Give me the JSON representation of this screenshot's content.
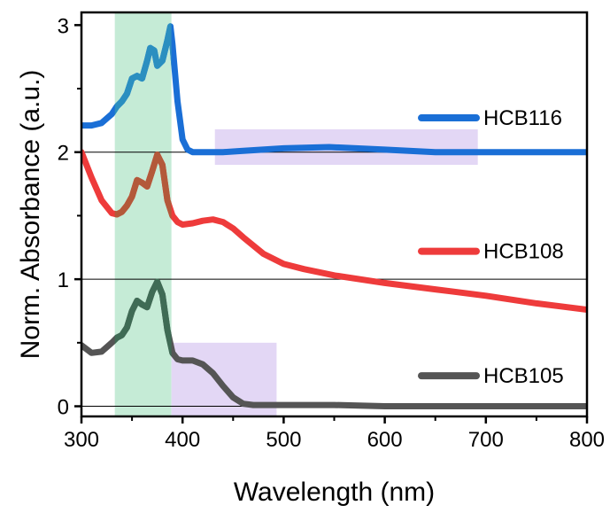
{
  "chart_data": {
    "type": "line",
    "xlabel": "Wavelength (nm)",
    "ylabel": "Norm. Absorbance (a.u.)",
    "xlim": [
      300,
      800
    ],
    "ylim": [
      -0.08,
      3.1
    ],
    "xticks": [
      300,
      400,
      500,
      600,
      700,
      800
    ],
    "xtick_labels": [
      "300",
      "400",
      "500",
      "600",
      "700",
      "800"
    ],
    "yticks": [
      0,
      1,
      2,
      3
    ],
    "ytick_labels": [
      "0",
      "1",
      "2",
      "3"
    ],
    "grid": false,
    "baselines": [
      0,
      1,
      2
    ],
    "legend_placement": "inline-right",
    "highlight_regions": [
      {
        "x": [
          333,
          389
        ],
        "y": [
          -0.08,
          3.1
        ],
        "color": "#c5ebd6"
      },
      {
        "x": [
          389,
          493
        ],
        "y": [
          -0.08,
          0.5
        ],
        "color": "#e3d7f5"
      },
      {
        "x": [
          432,
          692
        ],
        "y": [
          1.9,
          2.18
        ],
        "color": "#e3d7f5"
      }
    ],
    "series": [
      {
        "name": "HCB116",
        "color": "#1a6fd6",
        "dark_color": "#2b8fc0",
        "label_y": 2.27,
        "x": [
          300,
          310,
          320,
          330,
          335,
          340,
          345,
          350,
          355,
          360,
          365,
          368,
          372,
          375,
          380,
          385,
          388,
          390,
          395,
          400,
          405,
          410,
          420,
          440,
          460,
          500,
          545,
          600,
          650,
          700,
          750,
          800
        ],
        "y": [
          2.21,
          2.21,
          2.23,
          2.3,
          2.36,
          2.4,
          2.46,
          2.58,
          2.6,
          2.58,
          2.72,
          2.82,
          2.8,
          2.68,
          2.72,
          2.88,
          2.99,
          2.85,
          2.4,
          2.1,
          2.02,
          2.0,
          2.0,
          2.0,
          2.01,
          2.03,
          2.04,
          2.02,
          2.0,
          2.0,
          2.0,
          2.0
        ]
      },
      {
        "name": "HCB108",
        "color": "#ee3b3b",
        "dark_color": "#b3593a",
        "label_y": 1.22,
        "x": [
          300,
          310,
          320,
          330,
          335,
          340,
          345,
          350,
          355,
          360,
          365,
          370,
          375,
          380,
          385,
          390,
          395,
          400,
          410,
          420,
          430,
          440,
          450,
          460,
          480,
          500,
          520,
          550,
          600,
          650,
          700,
          750,
          800
        ],
        "y": [
          2.0,
          1.8,
          1.62,
          1.52,
          1.51,
          1.53,
          1.58,
          1.65,
          1.78,
          1.76,
          1.73,
          1.85,
          1.98,
          1.9,
          1.62,
          1.5,
          1.45,
          1.43,
          1.44,
          1.46,
          1.47,
          1.45,
          1.4,
          1.33,
          1.2,
          1.12,
          1.08,
          1.03,
          0.97,
          0.92,
          0.87,
          0.81,
          0.76
        ]
      },
      {
        "name": "HCB105",
        "color": "#555555",
        "dark_color": "#3f6b55",
        "label_y": 0.24,
        "x": [
          300,
          310,
          320,
          330,
          335,
          340,
          345,
          350,
          355,
          360,
          365,
          370,
          375,
          380,
          385,
          390,
          395,
          400,
          410,
          420,
          430,
          440,
          450,
          460,
          470,
          480,
          500,
          550,
          600,
          650,
          700,
          750,
          800
        ],
        "y": [
          0.48,
          0.42,
          0.43,
          0.5,
          0.54,
          0.56,
          0.62,
          0.75,
          0.83,
          0.8,
          0.78,
          0.9,
          0.98,
          0.88,
          0.6,
          0.42,
          0.37,
          0.36,
          0.36,
          0.33,
          0.26,
          0.16,
          0.07,
          0.02,
          0.01,
          0.01,
          0.01,
          0.01,
          0.0,
          0.0,
          0.0,
          0.0,
          0.0
        ]
      }
    ]
  }
}
